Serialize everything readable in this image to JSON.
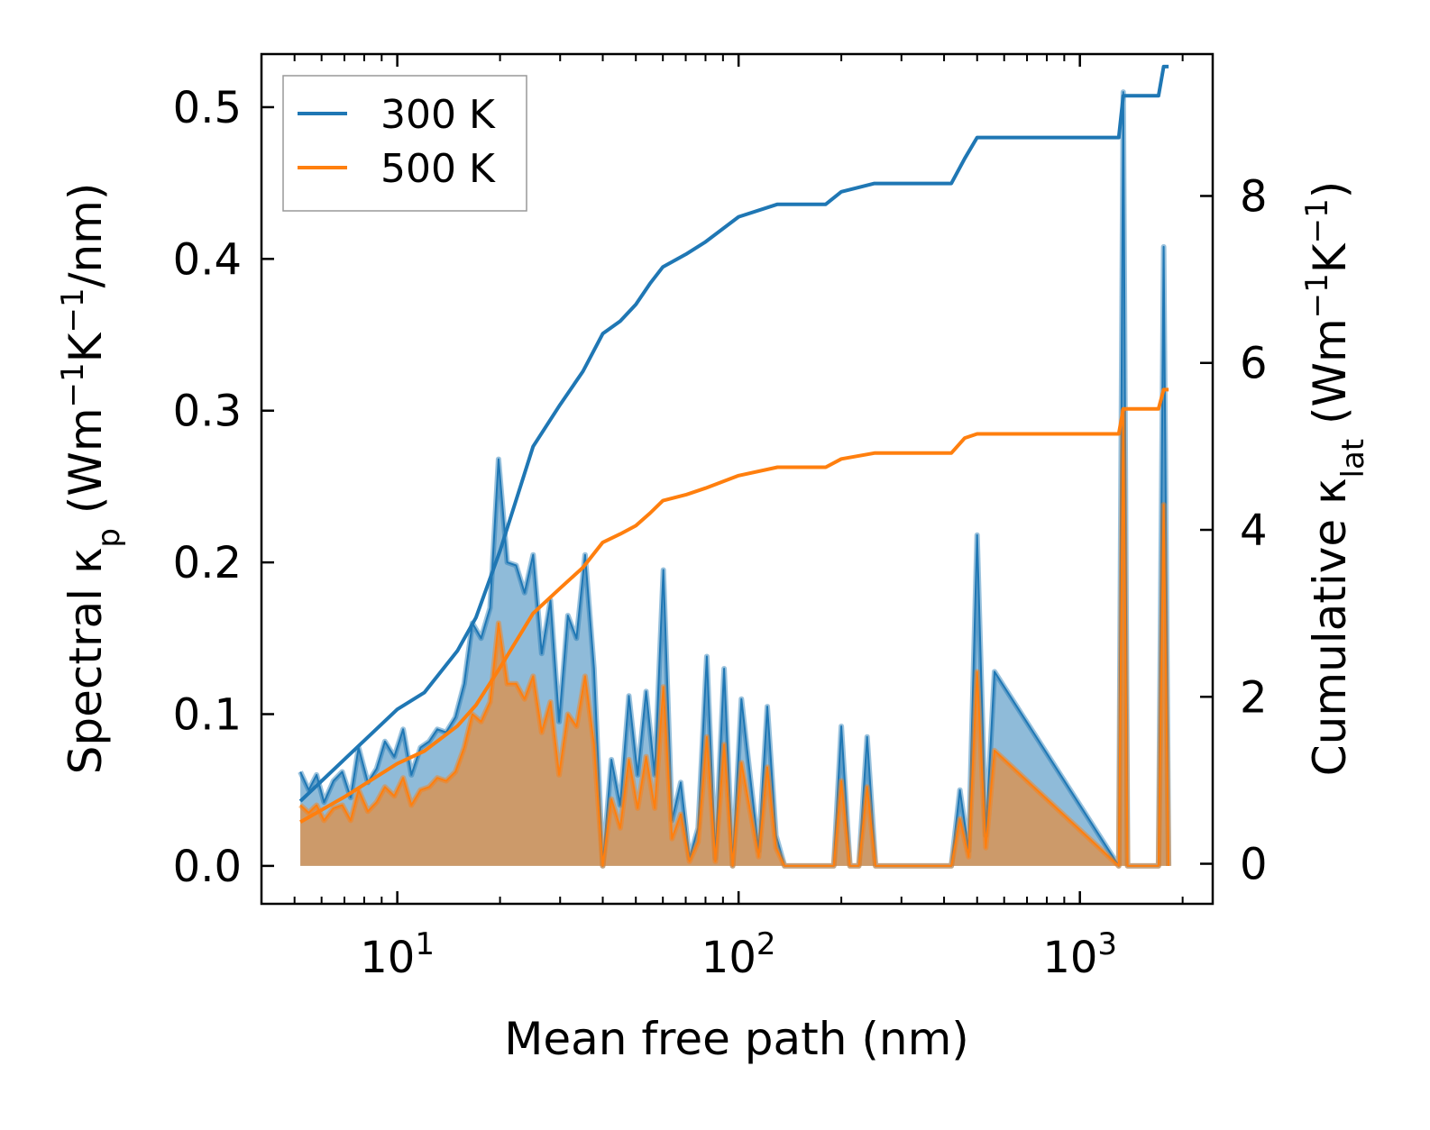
{
  "chart_data": {
    "type": "line",
    "xlabel": "Mean free path (nm)",
    "ylabel_left": {
      "main": "Spectral κ",
      "sub": "p",
      "unit_pre": " (Wm",
      "sup1": "−1",
      "unit_mid": "K",
      "sup2": "−1",
      "unit_post": "/nm)"
    },
    "ylabel_right": {
      "main": "Cumulative κ",
      "sub": "lat",
      "unit_pre": " (Wm",
      "sup1": "−1",
      "unit_mid": "K",
      "sup2": "−1",
      "unit_post": ")"
    },
    "xscale": "log",
    "xlim": [
      4.0,
      2450
    ],
    "ylim_left": [
      -0.025,
      0.535
    ],
    "ylim_right": [
      -0.48,
      9.7
    ],
    "x_ticks": [
      {
        "value": 10,
        "base": "10",
        "exp": "1"
      },
      {
        "value": 100,
        "base": "10",
        "exp": "2"
      },
      {
        "value": 1000,
        "base": "10",
        "exp": "3"
      }
    ],
    "y_ticks_left": [
      {
        "value": 0.0,
        "label": "0.0"
      },
      {
        "value": 0.1,
        "label": "0.1"
      },
      {
        "value": 0.2,
        "label": "0.2"
      },
      {
        "value": 0.3,
        "label": "0.3"
      },
      {
        "value": 0.4,
        "label": "0.4"
      },
      {
        "value": 0.5,
        "label": "0.5"
      }
    ],
    "y_ticks_right": [
      {
        "value": 0,
        "label": "0"
      },
      {
        "value": 2,
        "label": "2"
      },
      {
        "value": 4,
        "label": "4"
      },
      {
        "value": 6,
        "label": "6"
      },
      {
        "value": 8,
        "label": "8"
      }
    ],
    "legend": {
      "position": "top-left",
      "entries": [
        {
          "label": "300 K",
          "color": "#1f77b4"
        },
        {
          "label": "500 K",
          "color": "#ff7f0e"
        }
      ]
    },
    "spectral": {
      "x": [
        5.2,
        5.5,
        5.8,
        6.1,
        6.5,
        6.9,
        7.3,
        7.7,
        8.2,
        8.7,
        9.2,
        9.8,
        10.4,
        11.0,
        11.7,
        12.4,
        13.1,
        13.9,
        14.8,
        15.7,
        16.6,
        17.6,
        18.7,
        19.8,
        21.0,
        22.3,
        23.6,
        25.0,
        26.5,
        28.1,
        29.8,
        31.6,
        33.5,
        35.5,
        37.7,
        40.0,
        42.4,
        45.0,
        47.7,
        50.6,
        53.6,
        56.8,
        60.2,
        63.8,
        67.7,
        71.8,
        76.1,
        80.7,
        85.5,
        90.7,
        96.1,
        101.9,
        108.0,
        114.5,
        121.4,
        128.7,
        136.4,
        190.0,
        200.0,
        212.0,
        225.0,
        238.0,
        252.0,
        420.0,
        445.0,
        472.0,
        500.0,
        530.0,
        562.0,
        1300.0,
        1340.0,
        1380.0,
        1700.0,
        1760.0,
        1820.0
      ],
      "series": [
        {
          "name": "300 K",
          "color": "#1f77b4",
          "values": [
            0.062,
            0.05,
            0.06,
            0.042,
            0.056,
            0.062,
            0.045,
            0.078,
            0.055,
            0.064,
            0.082,
            0.072,
            0.09,
            0.06,
            0.078,
            0.082,
            0.09,
            0.088,
            0.098,
            0.12,
            0.16,
            0.15,
            0.17,
            0.268,
            0.2,
            0.198,
            0.18,
            0.205,
            0.14,
            0.175,
            0.095,
            0.165,
            0.15,
            0.205,
            0.13,
            0.0,
            0.07,
            0.04,
            0.112,
            0.06,
            0.115,
            0.06,
            0.195,
            0.03,
            0.055,
            0.005,
            0.025,
            0.138,
            0.005,
            0.13,
            0.0,
            0.11,
            0.06,
            0.01,
            0.105,
            0.02,
            0.0,
            0.0,
            0.092,
            0.0,
            0.0,
            0.085,
            0.0,
            0.0,
            0.05,
            0.01,
            0.218,
            0.02,
            0.128,
            0.0,
            0.51,
            0.0,
            0.0,
            0.408,
            0.0
          ]
        },
        {
          "name": "500 K",
          "color": "#ff7f0e",
          "values": [
            0.04,
            0.035,
            0.04,
            0.03,
            0.038,
            0.04,
            0.03,
            0.05,
            0.036,
            0.042,
            0.052,
            0.046,
            0.058,
            0.04,
            0.05,
            0.052,
            0.058,
            0.056,
            0.062,
            0.078,
            0.1,
            0.095,
            0.108,
            0.16,
            0.12,
            0.12,
            0.11,
            0.125,
            0.088,
            0.108,
            0.06,
            0.1,
            0.092,
            0.125,
            0.08,
            0.0,
            0.044,
            0.025,
            0.07,
            0.038,
            0.072,
            0.038,
            0.118,
            0.018,
            0.034,
            0.003,
            0.016,
            0.085,
            0.003,
            0.08,
            0.0,
            0.068,
            0.037,
            0.006,
            0.065,
            0.012,
            0.0,
            0.0,
            0.056,
            0.0,
            0.0,
            0.052,
            0.0,
            0.0,
            0.031,
            0.006,
            0.128,
            0.012,
            0.076,
            0.0,
            0.3,
            0.0,
            0.0,
            0.238,
            0.0
          ]
        }
      ]
    },
    "cumulative": {
      "series": [
        {
          "name": "300 K",
          "color": "#1f77b4",
          "points": [
            [
              5.2,
              0.75
            ],
            [
              7.0,
              1.25
            ],
            [
              10.0,
              1.85
            ],
            [
              12.0,
              2.05
            ],
            [
              15.0,
              2.55
            ],
            [
              17.0,
              2.95
            ],
            [
              20.0,
              3.75
            ],
            [
              25.0,
              5.0
            ],
            [
              30.0,
              5.5
            ],
            [
              35.0,
              5.9
            ],
            [
              40.0,
              6.35
            ],
            [
              45.0,
              6.5
            ],
            [
              50.0,
              6.7
            ],
            [
              55.0,
              6.95
            ],
            [
              60.0,
              7.15
            ],
            [
              70.0,
              7.3
            ],
            [
              80.0,
              7.45
            ],
            [
              100.0,
              7.75
            ],
            [
              130.0,
              7.9
            ],
            [
              180.0,
              7.9
            ],
            [
              200.0,
              8.05
            ],
            [
              250.0,
              8.15
            ],
            [
              420.0,
              8.15
            ],
            [
              460.0,
              8.45
            ],
            [
              500.0,
              8.7
            ],
            [
              1300.0,
              8.7
            ],
            [
              1340.0,
              9.2
            ],
            [
              1700.0,
              9.2
            ],
            [
              1760.0,
              9.55
            ],
            [
              1820.0,
              9.55
            ]
          ]
        },
        {
          "name": "500 K",
          "color": "#ff7f0e",
          "points": [
            [
              5.2,
              0.5
            ],
            [
              7.0,
              0.8
            ],
            [
              10.0,
              1.2
            ],
            [
              12.0,
              1.35
            ],
            [
              15.0,
              1.65
            ],
            [
              17.0,
              1.9
            ],
            [
              20.0,
              2.35
            ],
            [
              25.0,
              3.0
            ],
            [
              30.0,
              3.3
            ],
            [
              35.0,
              3.55
            ],
            [
              40.0,
              3.85
            ],
            [
              45.0,
              3.95
            ],
            [
              50.0,
              4.05
            ],
            [
              55.0,
              4.2
            ],
            [
              60.0,
              4.35
            ],
            [
              70.0,
              4.42
            ],
            [
              80.0,
              4.5
            ],
            [
              100.0,
              4.65
            ],
            [
              130.0,
              4.75
            ],
            [
              180.0,
              4.75
            ],
            [
              200.0,
              4.85
            ],
            [
              250.0,
              4.92
            ],
            [
              420.0,
              4.92
            ],
            [
              460.0,
              5.1
            ],
            [
              500.0,
              5.15
            ],
            [
              1300.0,
              5.15
            ],
            [
              1340.0,
              5.45
            ],
            [
              1700.0,
              5.45
            ],
            [
              1760.0,
              5.68
            ],
            [
              1820.0,
              5.68
            ]
          ]
        }
      ]
    }
  }
}
